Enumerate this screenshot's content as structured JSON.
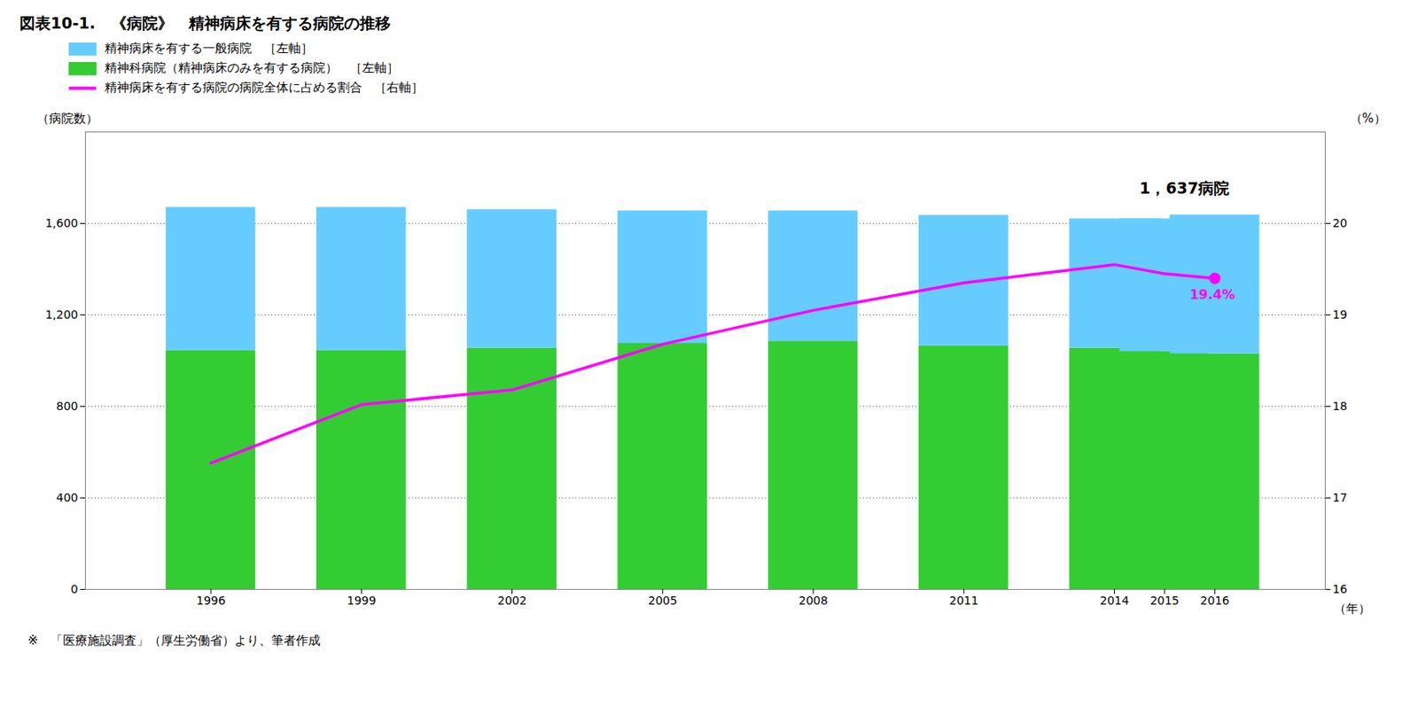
{
  "chart_data": {
    "type": "bar",
    "title": "図表10-1.　《病院》　精神病床を有する病院の推移",
    "x": [
      1996,
      1999,
      2002,
      2005,
      2008,
      2011,
      2014,
      2015,
      2016
    ],
    "series": [
      {
        "name": "精神病床を有する一般病院　［左軸］",
        "type": "bar",
        "color": "#66CCFF",
        "values": [
          625,
          625,
          605,
          580,
          570,
          570,
          565,
          580,
          607
        ]
      },
      {
        "name": "精神科病院（精神病床のみを有する病院）　［左軸］",
        "type": "bar",
        "color": "#33CC33",
        "values": [
          1045,
          1045,
          1055,
          1075,
          1085,
          1065,
          1055,
          1040,
          1030
        ]
      },
      {
        "name": "精神病床を有する病院の病院全体に占める割合　［右軸］",
        "type": "line",
        "axis": "y2",
        "color": "#FF00FF",
        "values": [
          17.38,
          18.02,
          18.18,
          18.68,
          19.05,
          19.35,
          19.55,
          19.45,
          19.4
        ]
      }
    ],
    "stacked": true,
    "xlim": [
      1993.5,
      2018.2
    ],
    "xticks": [
      1996,
      1999,
      2002,
      2005,
      2008,
      2011,
      2014,
      2015,
      2016
    ],
    "ylim": [
      0,
      2000
    ],
    "yticks": [
      0,
      400,
      800,
      {
        "value": 1200,
        "label": "1,200"
      },
      {
        "value": 1600,
        "label": "1,600"
      }
    ],
    "y2lim": [
      16,
      21
    ],
    "y2ticks": [
      16,
      17,
      18,
      19,
      20
    ],
    "x_label": "（年）",
    "y_label": "（病院数）",
    "y2_label": "（%）",
    "annotations": [
      {
        "text": "1，637病院",
        "x": 2014.5,
        "y": 1730
      },
      {
        "text": "19.4%",
        "x": 2015.5,
        "y": 19.28,
        "axis": "y2"
      }
    ],
    "source": "※　「医療施設調査」（厚生労働省）より、筆者作成",
    "grid": true,
    "legend": "upper left"
  }
}
